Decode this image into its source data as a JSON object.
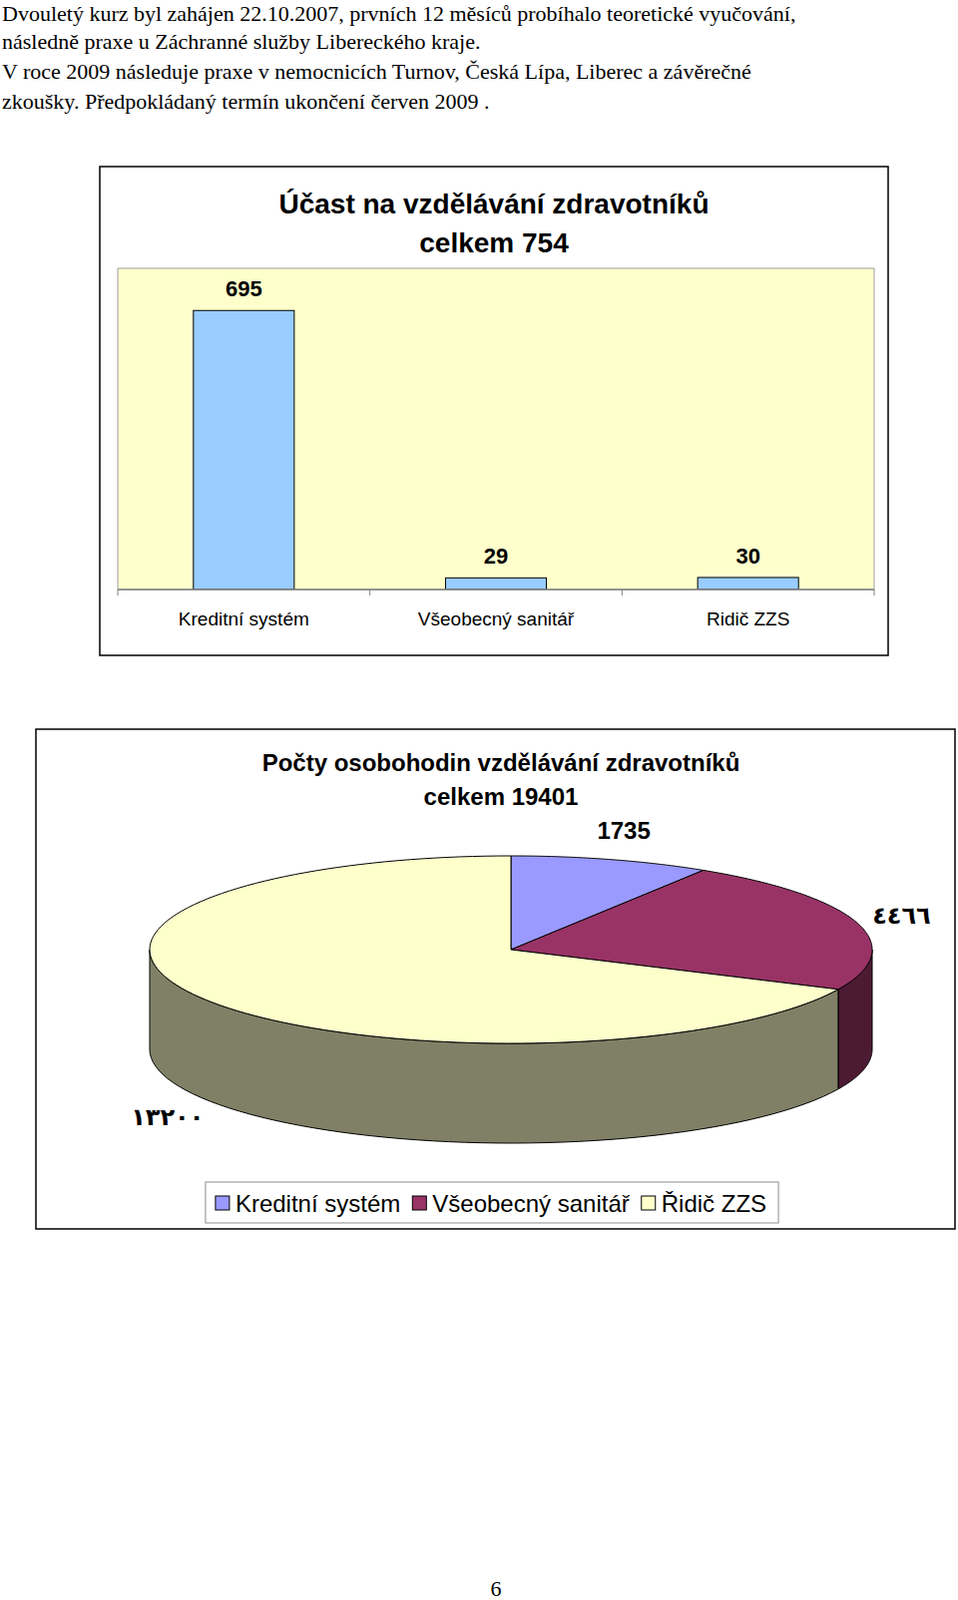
{
  "text": [
    "Dvouletý kurz byl zahájen 22.10.2007, prvních 12 měsíců probíhalo teoretické vyučování,",
    "následně praxe u Záchranné služby Libereckého kraje.",
    "V roce 2009 následuje praxe v nemocnicích Turnov, Česká Lípa, Liberec a závěrečné",
    "zkoušky. Předpokládaný termín ukončení červen 2009 ."
  ],
  "chart_data": [
    {
      "type": "bar",
      "title": "Účast na vzdělávání zdravotníků",
      "subtitle": "celkem 754",
      "categories": [
        "Kreditní systém",
        "Všeobecný sanitář",
        "Ridič ZZS"
      ],
      "values": [
        695,
        29,
        30
      ],
      "color": "#99ccff",
      "ylim": [
        0,
        800
      ],
      "grid": false,
      "data_labels": true,
      "tick_labels": "x"
    },
    {
      "type": "pie",
      "title": "Počty osobohodin vzdělávání zdravotníků",
      "subtitle": "celkem 19401",
      "categories": [
        "Kreditní systém",
        "Všeobecný sanitář",
        "Řidič ZZS"
      ],
      "values": [
        1735,
        4466,
        13200
      ],
      "value_labels": [
        "1735",
        "٤٤٦٦",
        "١٣٢٠٠"
      ],
      "colors": [
        "#9999ff",
        "#993366",
        "#ffffcc"
      ],
      "data_labels": true,
      "legend": "bottom"
    }
  ],
  "page_number": "6"
}
